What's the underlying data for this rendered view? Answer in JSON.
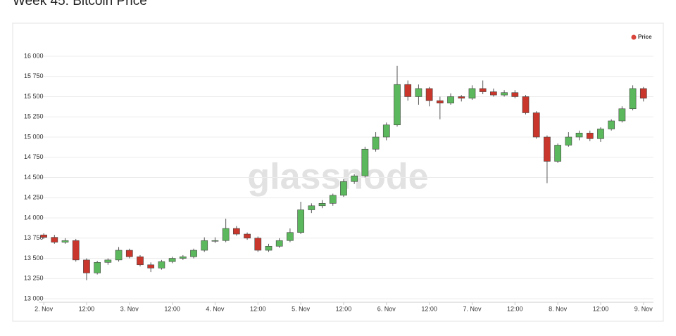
{
  "chart_data": {
    "type": "candlestick",
    "title": "Week 45: Bitcoin Price",
    "watermark": "glassnode",
    "legend": "top-right",
    "grid": true,
    "series": [
      {
        "name": "Price",
        "color": "#d9453b"
      }
    ],
    "up_color": "#5cb85c",
    "down_color": "#c9362b",
    "x": [
      0,
      3,
      6,
      9,
      12,
      15,
      18,
      21,
      24,
      27,
      30,
      33,
      36,
      39,
      42,
      45,
      48,
      51,
      54,
      57,
      60,
      63,
      66,
      69,
      72,
      75,
      78,
      81,
      84,
      87,
      90,
      93,
      96,
      99,
      102,
      105,
      108,
      111,
      114,
      117,
      120,
      123,
      126,
      129,
      132,
      135,
      138,
      141,
      144,
      147,
      150,
      153,
      156,
      159,
      162,
      165,
      168
    ],
    "open": [
      13790,
      13760,
      13700,
      13720,
      13480,
      13320,
      13450,
      13480,
      13600,
      13520,
      13420,
      13380,
      13460,
      13500,
      13520,
      13600,
      13720,
      13720,
      13870,
      13800,
      13750,
      13600,
      13650,
      13720,
      13820,
      14100,
      14150,
      14180,
      14280,
      14450,
      14520,
      14850,
      15000,
      15150,
      15650,
      15500,
      15600,
      15450,
      15420,
      15500,
      15480,
      15600,
      15560,
      15520,
      15550,
      15500,
      15300,
      15000,
      14700,
      14900,
      15000,
      15050,
      14980,
      15100,
      15200,
      15350,
      15600
    ],
    "high": [
      13810,
      13790,
      13750,
      13740,
      13500,
      13470,
      13500,
      13640,
      13620,
      13540,
      13450,
      13480,
      13520,
      13540,
      13620,
      13760,
      13760,
      13990,
      13900,
      13820,
      13770,
      13680,
      13750,
      13870,
      14200,
      14180,
      14220,
      14300,
      14480,
      14540,
      14880,
      15060,
      15180,
      15880,
      15700,
      15650,
      15620,
      15500,
      15540,
      15520,
      15640,
      15700,
      15600,
      15580,
      15580,
      15520,
      15320,
      15020,
      14920,
      15060,
      15080,
      15080,
      15120,
      15220,
      15380,
      15640,
      15620
    ],
    "low": [
      13740,
      13680,
      13680,
      13460,
      13230,
      13300,
      13420,
      13460,
      13500,
      13400,
      13330,
      13360,
      13440,
      13480,
      13500,
      13580,
      13690,
      13700,
      13780,
      13730,
      13580,
      13580,
      13630,
      13700,
      13800,
      14060,
      14120,
      14150,
      14260,
      14420,
      14500,
      14820,
      14960,
      15130,
      15450,
      15400,
      15380,
      15220,
      15400,
      15440,
      15460,
      15530,
      15500,
      15500,
      15480,
      15280,
      14980,
      14430,
      14680,
      14880,
      14960,
      14950,
      14940,
      15080,
      15180,
      15330,
      15440
    ],
    "close": [
      13760,
      13700,
      13720,
      13480,
      13320,
      13450,
      13480,
      13600,
      13520,
      13420,
      13380,
      13460,
      13500,
      13520,
      13600,
      13720,
      13720,
      13870,
      13800,
      13750,
      13600,
      13650,
      13720,
      13820,
      14100,
      14150,
      14180,
      14280,
      14450,
      14520,
      14850,
      15000,
      15150,
      15650,
      15500,
      15600,
      15450,
      15420,
      15500,
      15480,
      15600,
      15560,
      15520,
      15550,
      15500,
      15300,
      15000,
      14700,
      14900,
      15000,
      15050,
      14980,
      15100,
      15200,
      15350,
      15600,
      15480
    ],
    "xlim": [
      -1.4,
      170.8
    ],
    "xticks": [
      {
        "value": 0,
        "label": "2. Nov"
      },
      {
        "value": 12,
        "label": "12:00"
      },
      {
        "value": 24,
        "label": "3. Nov"
      },
      {
        "value": 36,
        "label": "12:00"
      },
      {
        "value": 48,
        "label": "4. Nov"
      },
      {
        "value": 60,
        "label": "12:00"
      },
      {
        "value": 72,
        "label": "5. Nov"
      },
      {
        "value": 84,
        "label": "12:00"
      },
      {
        "value": 96,
        "label": "6. Nov"
      },
      {
        "value": 108,
        "label": "12:00"
      },
      {
        "value": 120,
        "label": "7. Nov"
      },
      {
        "value": 132,
        "label": "12:00"
      },
      {
        "value": 144,
        "label": "8. Nov"
      },
      {
        "value": 156,
        "label": "12:00"
      },
      {
        "value": 168,
        "label": "9. Nov"
      }
    ],
    "ylim": [
      12957,
      16130
    ],
    "yticks": [
      {
        "value": 13000,
        "label": "13 000"
      },
      {
        "value": 13250,
        "label": "13 250"
      },
      {
        "value": 13500,
        "label": "13 500"
      },
      {
        "value": 13750,
        "label": "13 750"
      },
      {
        "value": 14000,
        "label": "14 000"
      },
      {
        "value": 14250,
        "label": "14 250"
      },
      {
        "value": 14500,
        "label": "14 500"
      },
      {
        "value": 14750,
        "label": "14 750"
      },
      {
        "value": 15000,
        "label": "15 000"
      },
      {
        "value": 15250,
        "label": "15 250"
      },
      {
        "value": 15500,
        "label": "15 500"
      },
      {
        "value": 15750,
        "label": "15 750"
      },
      {
        "value": 16000,
        "label": "16 000"
      }
    ]
  }
}
